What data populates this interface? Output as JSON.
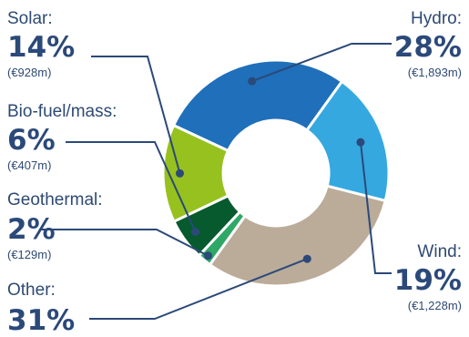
{
  "chart_data": {
    "type": "pie",
    "donut": true,
    "slices": [
      {
        "name": "Hydro",
        "label": "Hydro:",
        "percent": 28,
        "percent_label": "28%",
        "amount_label": "(€1,893m)",
        "color": "#1f6fba"
      },
      {
        "name": "Wind",
        "label": "Wind:",
        "percent": 19,
        "percent_label": "19%",
        "amount_label": "(€1,228m)",
        "color": "#35a8e0"
      },
      {
        "name": "Other",
        "label": "Other:",
        "percent": 31,
        "percent_label": "31%",
        "amount_label": "",
        "color": "#bbab99"
      },
      {
        "name": "Geothermal",
        "label": "Geothermal:",
        "percent": 2,
        "percent_label": "2%",
        "amount_label": "(€129m)",
        "color": "#2fa767"
      },
      {
        "name": "Bio-fuel/mass",
        "label": "Bio-fuel/mass:",
        "percent": 6,
        "percent_label": "6%",
        "amount_label": "(€407m)",
        "color": "#07592e"
      },
      {
        "name": "Solar",
        "label": "Solar:",
        "percent": 14,
        "percent_label": "14%",
        "amount_label": "(€928m)",
        "color": "#96c11f"
      }
    ],
    "leader_color": "#2b4979"
  }
}
